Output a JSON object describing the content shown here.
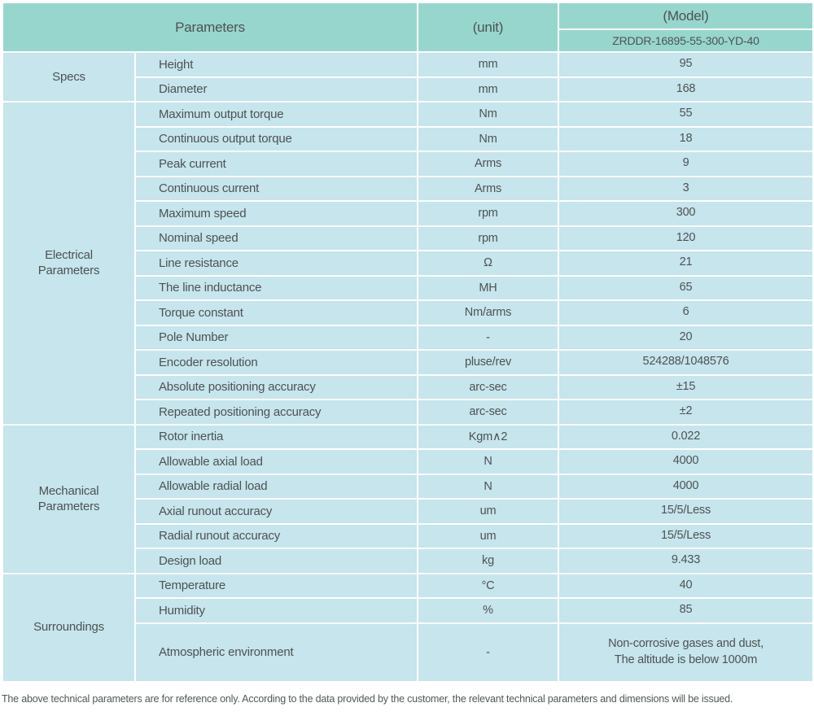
{
  "colors": {
    "header_bg": "#97d6cd",
    "cell_bg": "#c6e5ec",
    "border_col": "#ffffff",
    "text_col": "#4e5254",
    "footer_col": "#4f5a54"
  },
  "header": {
    "parameters_label": "Parameters",
    "unit_label": "(unit)",
    "model_label": "(Model)",
    "model_value": "ZRDDR-16895-55-300-YD-40"
  },
  "sections": [
    {
      "name": "Specs",
      "rows": [
        {
          "param": "Height",
          "unit": "mm",
          "value": "95"
        },
        {
          "param": "Diameter",
          "unit": "mm",
          "value": "168"
        }
      ]
    },
    {
      "name": "Electrical\nParameters",
      "rows": [
        {
          "param": "Maximum output torque",
          "unit": "Nm",
          "value": "55"
        },
        {
          "param": "Continuous output torque",
          "unit": "Nm",
          "value": "18"
        },
        {
          "param": "Peak current",
          "unit": "Arms",
          "value": "9"
        },
        {
          "param": "Continuous current",
          "unit": "Arms",
          "value": "3"
        },
        {
          "param": "Maximum speed",
          "unit": "rpm",
          "value": "300"
        },
        {
          "param": "Nominal speed",
          "unit": "rpm",
          "value": "120"
        },
        {
          "param": "Line resistance",
          "unit": "Ω",
          "value": "21"
        },
        {
          "param": "The line inductance",
          "unit": "MH",
          "value": "65"
        },
        {
          "param": "Torque constant",
          "unit": "Nm/arms",
          "value": "6"
        },
        {
          "param": "Pole Number",
          "unit": "-",
          "value": "20"
        },
        {
          "param": "Encoder resolution",
          "unit": "pluse/rev",
          "value": "524288/1048576"
        },
        {
          "param": "Absolute positioning accuracy",
          "unit": "arc-sec",
          "value": "±15"
        },
        {
          "param": "Repeated positioning accuracy",
          "unit": "arc-sec",
          "value": "±2"
        }
      ]
    },
    {
      "name": "Mechanical\nParameters",
      "rows": [
        {
          "param": "Rotor inertia",
          "unit": "Kgm∧2",
          "value": "0.022"
        },
        {
          "param": "Allowable axial load",
          "unit": "N",
          "value": "4000"
        },
        {
          "param": "Allowable radial load",
          "unit": "N",
          "value": "4000"
        },
        {
          "param": "Axial runout accuracy",
          "unit": "um",
          "value": "15/5/Less"
        },
        {
          "param": "Radial runout accuracy",
          "unit": "um",
          "value": "15/5/Less"
        },
        {
          "param": "Design load",
          "unit": "kg",
          "value": "9.433"
        }
      ]
    },
    {
      "name": "Surroundings",
      "rows": [
        {
          "param": "Temperature",
          "unit": "°C",
          "value": "40"
        },
        {
          "param": "Humidity",
          "unit": "%",
          "value": "85"
        },
        {
          "param": "Atmospheric environment",
          "unit": "-",
          "value": "Non-corrosive gases and dust,\nThe altitude is below 1000m"
        }
      ]
    }
  ],
  "footer": {
    "note": "The above technical parameters are for reference only. According to the data provided by the customer, the relevant technical parameters and dimensions will be issued."
  }
}
